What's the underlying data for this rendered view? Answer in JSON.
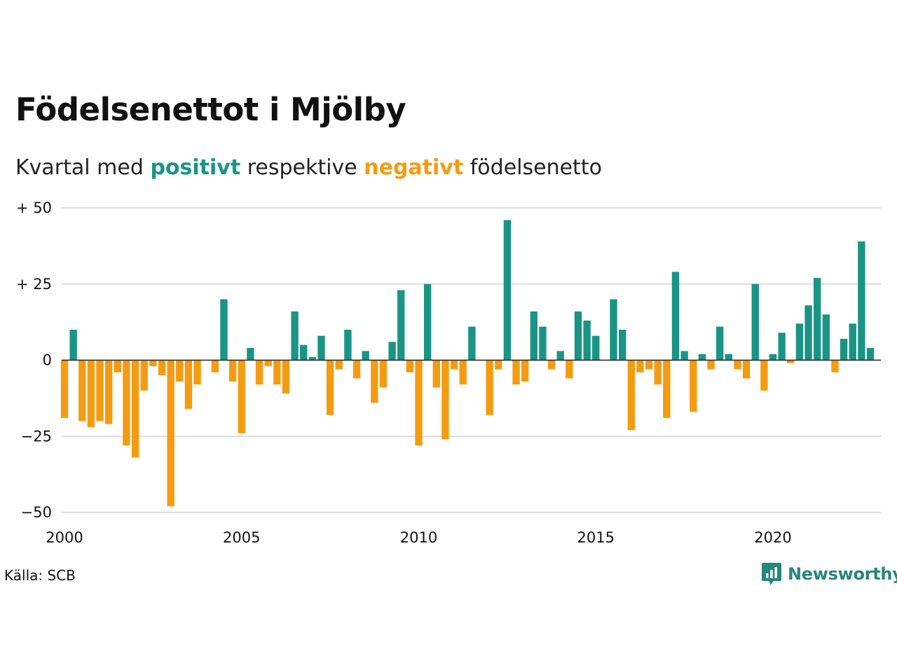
{
  "title": "Födelsenettot i Mjölby",
  "subtitle": {
    "prefix": "Kvartal med",
    "positive_word": "positivt",
    "middle": "respektive",
    "negative_word": "negativt",
    "suffix": "födelsenetto"
  },
  "source": "Källa: SCB",
  "brand": {
    "name": "Newsworthy",
    "icon": "newsworthy-logo-icon"
  },
  "colors": {
    "positive": "#1a9485",
    "negative": "#f39c12",
    "grid": "#dddddd",
    "baseline": "#222222"
  },
  "chart_data": {
    "type": "bar",
    "title": "Födelsenettot i Mjölby",
    "xlabel": "",
    "ylabel": "",
    "ylim": [
      -50,
      50
    ],
    "xlim": [
      2000,
      2023.2
    ],
    "grid": true,
    "y_ticks": [
      {
        "value": 50,
        "label": "+ 50"
      },
      {
        "value": 25,
        "label": "+ 25"
      },
      {
        "value": 0,
        "label": "0"
      },
      {
        "value": -25,
        "label": "−25"
      },
      {
        "value": -50,
        "label": "−50"
      }
    ],
    "x_ticks": [
      {
        "value": 2000,
        "label": "2000"
      },
      {
        "value": 2005,
        "label": "2005"
      },
      {
        "value": 2010,
        "label": "2010"
      },
      {
        "value": 2015,
        "label": "2015"
      },
      {
        "value": 2020,
        "label": "2020"
      }
    ],
    "categories": [
      "2000 K1",
      "2000 K2",
      "2000 K3",
      "2000 K4",
      "2001 K1",
      "2001 K2",
      "2001 K3",
      "2001 K4",
      "2002 K1",
      "2002 K2",
      "2002 K3",
      "2002 K4",
      "2003 K1",
      "2003 K2",
      "2003 K3",
      "2003 K4",
      "2004 K1",
      "2004 K2",
      "2004 K3",
      "2004 K4",
      "2005 K1",
      "2005 K2",
      "2005 K3",
      "2005 K4",
      "2006 K1",
      "2006 K2",
      "2006 K3",
      "2006 K4",
      "2007 K1",
      "2007 K2",
      "2007 K3",
      "2007 K4",
      "2008 K1",
      "2008 K2",
      "2008 K3",
      "2008 K4",
      "2009 K1",
      "2009 K2",
      "2009 K3",
      "2009 K4",
      "2010 K1",
      "2010 K2",
      "2010 K3",
      "2010 K4",
      "2011 K1",
      "2011 K2",
      "2011 K3",
      "2011 K4",
      "2012 K1",
      "2012 K2",
      "2012 K3",
      "2012 K4",
      "2013 K1",
      "2013 K2",
      "2013 K3",
      "2013 K4",
      "2014 K1",
      "2014 K2",
      "2014 K3",
      "2014 K4",
      "2015 K1",
      "2015 K2",
      "2015 K3",
      "2015 K4",
      "2016 K1",
      "2016 K2",
      "2016 K3",
      "2016 K4",
      "2017 K1",
      "2017 K2",
      "2017 K3",
      "2017 K4",
      "2018 K1",
      "2018 K2",
      "2018 K3",
      "2018 K4",
      "2019 K1",
      "2019 K2",
      "2019 K3",
      "2019 K4",
      "2020 K1",
      "2020 K2",
      "2020 K3",
      "2020 K4",
      "2021 K1",
      "2021 K2",
      "2021 K3",
      "2021 K4",
      "2022 K1",
      "2022 K2",
      "2022 K3",
      "2022 K4",
      "2023 K1"
    ],
    "values": [
      -19,
      10,
      -20,
      -22,
      -20,
      -21,
      -4,
      -28,
      -32,
      -10,
      -2,
      -5,
      -48,
      -7,
      -16,
      -8,
      0,
      -4,
      20,
      -7,
      -24,
      4,
      -8,
      -2,
      -8,
      -11,
      16,
      5,
      1,
      8,
      -18,
      -3,
      10,
      -6,
      3,
      -14,
      -9,
      6,
      23,
      -4,
      -28,
      25,
      -9,
      -26,
      -3,
      -8,
      11,
      0,
      -18,
      -3,
      46,
      -8,
      -7,
      16,
      11,
      -3,
      3,
      -6,
      16,
      13,
      8,
      0,
      20,
      10,
      -23,
      -4,
      -3,
      -8,
      -19,
      29,
      3,
      -17,
      2,
      -3,
      11,
      2,
      -3,
      -6,
      25,
      -10,
      2,
      9,
      -1,
      12,
      18,
      27,
      15,
      -4,
      7,
      12,
      39,
      4,
      0
    ]
  }
}
